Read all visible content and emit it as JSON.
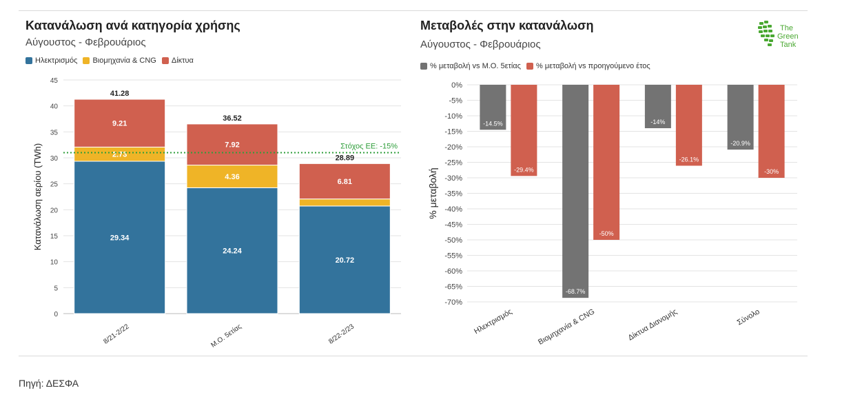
{
  "left": {
    "title": "Κατανάλωση ανά κατηγορία χρήσης",
    "subtitle": "Αύγουστος - Φεβρουάριος",
    "legend": [
      {
        "label": "Ηλεκτρισμός",
        "color": "#33739c"
      },
      {
        "label": "Βιομηχανία & CNG",
        "color": "#efb427"
      },
      {
        "label": "Δίκτυα",
        "color": "#d0604f"
      }
    ]
  },
  "right": {
    "title": "Μεταβολές στην κατανάλωση",
    "subtitle": "Αύγουστος - Φεβρουάριος",
    "legend": [
      {
        "label": "% μεταβολή vs Μ.Ο. 5ετίας",
        "color": "#737373"
      },
      {
        "label": "% μεταβολή vs προηγούμενο έτος",
        "color": "#d0604f"
      }
    ]
  },
  "logo": {
    "line1": "The",
    "line2": "Green",
    "line3": "Tank",
    "color": "#4aa832"
  },
  "source": "Πηγή: ΔΕΣΦΑ",
  "chart_data": [
    {
      "type": "bar",
      "stacked": true,
      "title": "Κατανάλωση ανά κατηγορία χρήσης",
      "subtitle": "Αύγουστος - Φεβρουάριος",
      "categories": [
        "8/21-2/22",
        "Μ.Ο. 5ετίας",
        "8/22-2/23"
      ],
      "series": [
        {
          "name": "Ηλεκτρισμός",
          "values": [
            29.34,
            24.24,
            20.72
          ],
          "color": "#33739c"
        },
        {
          "name": "Βιομηχανία & CNG",
          "values": [
            2.73,
            4.36,
            1.36
          ],
          "color": "#efb427"
        },
        {
          "name": "Δίκτυα",
          "values": [
            9.21,
            7.92,
            6.81
          ],
          "color": "#d0604f"
        }
      ],
      "totals": [
        41.28,
        36.52,
        28.89
      ],
      "segment_labels": [
        [
          "29.34",
          "2.73",
          "9.21"
        ],
        [
          "24.24",
          "4.36",
          "7.92"
        ],
        [
          "20.72",
          "",
          "6.81"
        ]
      ],
      "ylabel": "Κατανάλωση αερίου (TWh)",
      "ylim": [
        0,
        45
      ],
      "yticks": [
        0,
        5,
        10,
        15,
        20,
        25,
        30,
        35,
        40,
        45
      ],
      "reference_line": {
        "value": 31.0,
        "label": "Στόχος ΕΕ: -15%",
        "color": "#2e9e3a"
      },
      "grid": true,
      "legend": "top-left"
    },
    {
      "type": "bar",
      "title": "Μεταβολές στην κατανάλωση",
      "subtitle": "Αύγουστος - Φεβρουάριος",
      "categories": [
        "Ηλεκτρισμός",
        "Βιομηχανία & CNG",
        "Δίκτυα Διανομής",
        "Σύνολο"
      ],
      "series": [
        {
          "name": "% μεταβολή vs Μ.Ο. 5ετίας",
          "values": [
            -14.5,
            -68.7,
            -14,
            -20.9
          ],
          "labels": [
            "-14.5%",
            "-68.7%",
            "-14%",
            "-20.9%"
          ],
          "color": "#737373"
        },
        {
          "name": "% μεταβολή vs προηγούμενο έτος",
          "values": [
            -29.4,
            -50,
            -26.1,
            -30
          ],
          "labels": [
            "-29.4%",
            "-50%",
            "-26.1%",
            "-30%"
          ],
          "color": "#d0604f"
        }
      ],
      "ylabel": "% μεταβολή",
      "ylim": [
        -70,
        0
      ],
      "yticks": [
        "0%",
        "-5%",
        "-10%",
        "-15%",
        "-20%",
        "-25%",
        "-30%",
        "-35%",
        "-40%",
        "-45%",
        "-50%",
        "-55%",
        "-60%",
        "-65%",
        "-70%"
      ],
      "grid": true,
      "legend": "top-left"
    }
  ]
}
